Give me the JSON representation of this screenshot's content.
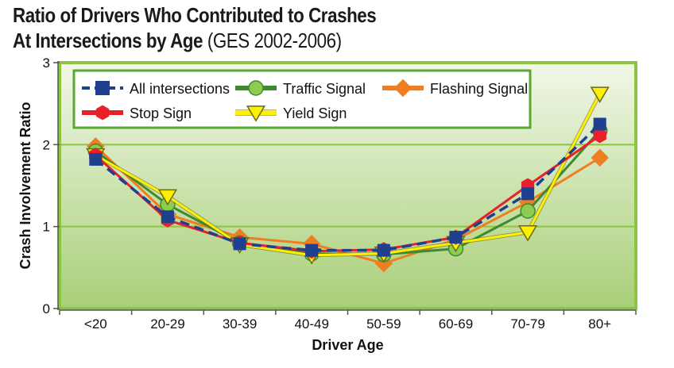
{
  "title_line1": "Ratio of Drivers Who Contributed to Crashes",
  "title_line2_main": "At Intersections by Age",
  "title_line2_sub": "(GES 2002-2006)",
  "chart_data": {
    "type": "line",
    "title": "Ratio of Drivers Who Contributed to Crashes At Intersections by Age (GES 2002-2006)",
    "xlabel": "Driver Age",
    "ylabel": "Crash Involvement Ratio",
    "categories": [
      "<20",
      "20-29",
      "30-39",
      "40-49",
      "50-59",
      "60-69",
      "70-79",
      "80+"
    ],
    "yticks": [
      "0",
      "1",
      "2",
      "3"
    ],
    "ylim": [
      0,
      3
    ],
    "legend_position": "top-left inside plot",
    "grid": "horizontal",
    "colors": {
      "plot_bg_top": "#f2f7e8",
      "plot_bg_bottom": "#a8cf78",
      "frame": "#8cc63f",
      "legend_border": "#5aa832"
    },
    "series": [
      {
        "name": "All intersections",
        "color": "#1f3f8f",
        "marker": "square",
        "dash": true,
        "values": [
          1.82,
          1.12,
          0.79,
          0.71,
          0.71,
          0.87,
          1.4,
          2.25
        ]
      },
      {
        "name": "Traffic Signal",
        "color": "#3e8a2e",
        "fill": "#8ccc50",
        "marker": "circle",
        "dash": false,
        "values": [
          1.92,
          1.27,
          0.8,
          0.67,
          0.66,
          0.73,
          1.19,
          2.17
        ]
      },
      {
        "name": "Flashing Signal",
        "color": "#ef7d22",
        "marker": "diamond",
        "dash": false,
        "values": [
          1.98,
          1.15,
          0.87,
          0.79,
          0.55,
          0.84,
          1.3,
          1.84
        ]
      },
      {
        "name": "Stop Sign",
        "color": "#e8202a",
        "marker": "hexagon",
        "dash": false,
        "values": [
          1.87,
          1.08,
          0.8,
          0.7,
          0.72,
          0.87,
          1.5,
          2.11
        ]
      },
      {
        "name": "Yield Sign",
        "color": "#ffef00",
        "stroke": "#6a6a1a",
        "marker": "triangle-down",
        "dash": false,
        "values": [
          1.87,
          1.37,
          0.78,
          0.65,
          0.67,
          0.8,
          0.93,
          2.62
        ]
      }
    ]
  }
}
